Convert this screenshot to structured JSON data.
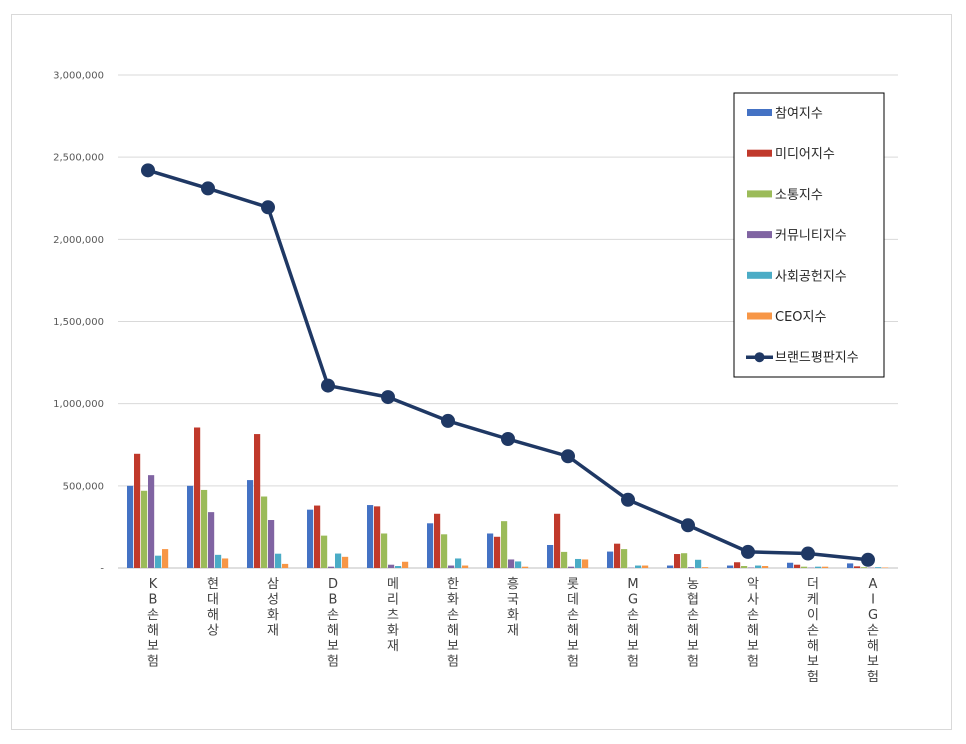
{
  "chart_data": {
    "type": "bar",
    "title": "",
    "xlabel": "",
    "ylabel": "",
    "ylim": [
      0,
      3000000
    ],
    "yticks": [
      0,
      500000,
      1000000,
      1500000,
      2000000,
      2500000,
      3000000
    ],
    "ytick_labels": [
      "-",
      "500,000",
      "1,000,000",
      "1,500,000",
      "2,000,000",
      "2,500,000",
      "3,000,000"
    ],
    "grid": true,
    "legend_position": "top-right",
    "categories": [
      "KB손해보험",
      "현대해상",
      "삼성화재",
      "DB손해보험",
      "메리츠화재",
      "한화손해보험",
      "흥국화재",
      "롯데손해보험",
      "MG손해보험",
      "농협손해보험",
      "악사손해보험",
      "더케이손해보험",
      "AIG손해보험"
    ],
    "series": [
      {
        "name": "참여지수",
        "type": "bar",
        "color": "#4472c4",
        "values": [
          500000,
          500000,
          535000,
          355000,
          383000,
          272000,
          210000,
          140000,
          100000,
          15000,
          15000,
          32000,
          28000
        ]
      },
      {
        "name": "미디어지수",
        "type": "bar",
        "color": "#c0392b",
        "values": [
          695000,
          855000,
          815000,
          380000,
          375000,
          330000,
          190000,
          330000,
          148000,
          85000,
          35000,
          20000,
          10000
        ]
      },
      {
        "name": "소통지수",
        "type": "bar",
        "color": "#9bbb59",
        "values": [
          470000,
          475000,
          435000,
          197000,
          210000,
          205000,
          285000,
          98000,
          115000,
          90000,
          12000,
          8000,
          5000
        ]
      },
      {
        "name": "커뮤니티지수",
        "type": "bar",
        "color": "#8064a2",
        "values": [
          565000,
          340000,
          292000,
          8000,
          20000,
          15000,
          52000,
          8000,
          2000,
          5000,
          3000,
          2000,
          2000
        ]
      },
      {
        "name": "사회공헌지수",
        "type": "bar",
        "color": "#4bacc6",
        "values": [
          75000,
          80000,
          87000,
          88000,
          12000,
          58000,
          40000,
          55000,
          15000,
          50000,
          15000,
          8000,
          5000
        ]
      },
      {
        "name": "CEO지수",
        "type": "bar",
        "color": "#f79646",
        "values": [
          115000,
          58000,
          25000,
          68000,
          38000,
          15000,
          8000,
          52000,
          15000,
          5000,
          12000,
          8000,
          3000
        ]
      },
      {
        "name": "브랜드평판지수",
        "type": "line",
        "color": "#1f3864",
        "values": [
          2420000,
          2310000,
          2195000,
          1110000,
          1040000,
          895000,
          785000,
          680000,
          415000,
          260000,
          98000,
          88000,
          50000
        ]
      }
    ]
  }
}
